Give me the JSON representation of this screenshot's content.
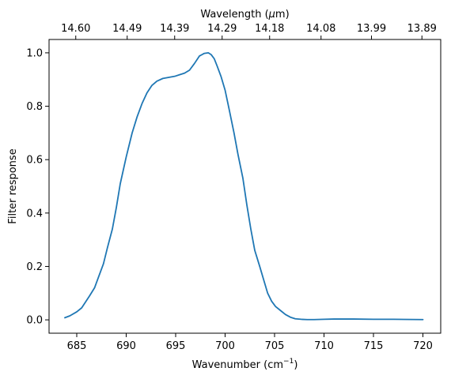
{
  "chart_data": {
    "type": "line",
    "xlabel": "Wavenumber (cm",
    "xlabel_sup": "−1",
    "xlabel_end": ")",
    "ylabel": "Filter response",
    "top_xlabel": "Wavelength (",
    "top_xlabel_mu": "μ",
    "top_xlabel_end": "m)",
    "xlim": [
      682.2,
      721.8
    ],
    "ylim": [
      -0.05,
      1.05
    ],
    "x_ticks": [
      685,
      690,
      695,
      700,
      705,
      710,
      715,
      720
    ],
    "x_tick_labels": [
      "685",
      "690",
      "695",
      "700",
      "705",
      "710",
      "715",
      "720"
    ],
    "y_ticks": [
      0.0,
      0.2,
      0.4,
      0.6,
      0.8,
      1.0
    ],
    "y_tick_labels": [
      "0.0",
      "0.2",
      "0.4",
      "0.6",
      "0.8",
      "1.0"
    ],
    "top_ticks": [
      {
        "wavenumber": 684.9,
        "label": "14.60"
      },
      {
        "wavenumber": 690.1,
        "label": "14.49"
      },
      {
        "wavenumber": 694.9,
        "label": "14.39"
      },
      {
        "wavenumber": 699.7,
        "label": "14.29"
      },
      {
        "wavenumber": 704.5,
        "label": "14.18"
      },
      {
        "wavenumber": 709.7,
        "label": "14.08"
      },
      {
        "wavenumber": 714.8,
        "label": "13.99"
      },
      {
        "wavenumber": 719.9,
        "label": "13.89"
      }
    ],
    "grid": false,
    "line_color": "#1f77b4",
    "series": [
      {
        "x": [
          683.8,
          684.3,
          685.0,
          685.5,
          686.3,
          686.8,
          687.2,
          687.7,
          688.1,
          688.6,
          689.0,
          689.4,
          690.0,
          690.6,
          691.1,
          691.6,
          692.1,
          692.6,
          693.1,
          693.7,
          694.3,
          694.9,
          695.4,
          695.9,
          696.4,
          696.9,
          697.4,
          697.9,
          698.3,
          698.6,
          698.9,
          699.2,
          699.6,
          700.0,
          700.4,
          700.9,
          701.3,
          701.8,
          702.2,
          702.6,
          703.0,
          703.5,
          703.9,
          704.3,
          704.7,
          705.1,
          705.6,
          706.1,
          706.6,
          707.1,
          707.7,
          708.3,
          709.0,
          710.0,
          711.0,
          713.0,
          715.0,
          717.0,
          720.0
        ],
        "y": [
          0.008,
          0.015,
          0.03,
          0.045,
          0.09,
          0.12,
          0.16,
          0.21,
          0.27,
          0.34,
          0.42,
          0.51,
          0.61,
          0.7,
          0.76,
          0.81,
          0.85,
          0.878,
          0.894,
          0.904,
          0.908,
          0.912,
          0.918,
          0.924,
          0.935,
          0.96,
          0.988,
          0.998,
          1.0,
          0.993,
          0.978,
          0.95,
          0.91,
          0.86,
          0.79,
          0.7,
          0.62,
          0.53,
          0.43,
          0.34,
          0.26,
          0.2,
          0.15,
          0.1,
          0.07,
          0.05,
          0.035,
          0.02,
          0.01,
          0.004,
          0.002,
          0.001,
          0.001,
          0.002,
          0.003,
          0.003,
          0.002,
          0.002,
          0.001
        ]
      }
    ]
  }
}
